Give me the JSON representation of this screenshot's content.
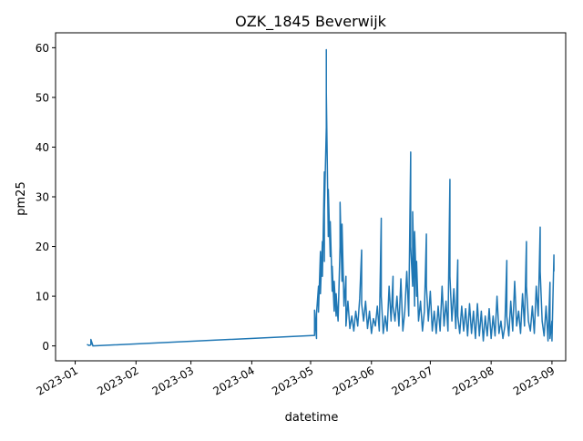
{
  "chart_data": {
    "type": "line",
    "title": "OZK_1845 Beverwijk",
    "xlabel": "datetime",
    "ylabel": "pm25",
    "x_ticks": [
      "2023-01",
      "2023-02",
      "2023-03",
      "2023-04",
      "2023-05",
      "2023-06",
      "2023-07",
      "2023-08",
      "2023-09"
    ],
    "y_ticks": [
      0,
      10,
      20,
      30,
      40,
      50,
      60
    ],
    "xlim": [
      "2022-12-22",
      "2023-09-08"
    ],
    "ylim": [
      -3,
      63
    ],
    "grid": false,
    "series": [
      {
        "color": "#1f77b4",
        "points": [
          [
            "2023-01-07",
            0.3
          ],
          [
            "2023-01-08",
            0.1
          ],
          [
            "2023-01-09",
            0.2
          ],
          [
            "2023-01-09",
            1.3
          ],
          [
            "2023-01-10",
            0.1
          ],
          [
            "2023-01-10",
            0.0
          ],
          [
            "2023-05-03",
            2.1
          ],
          [
            "2023-05-03",
            7.2
          ],
          [
            "2023-05-04",
            1.5
          ],
          [
            "2023-05-04",
            6.5
          ],
          [
            "2023-05-05",
            12.0
          ],
          [
            "2023-05-05",
            6.8
          ],
          [
            "2023-05-06",
            19.0
          ],
          [
            "2023-05-06",
            10.5
          ],
          [
            "2023-05-07",
            21.0
          ],
          [
            "2023-05-07",
            14.0
          ],
          [
            "2023-05-08",
            35.0
          ],
          [
            "2023-05-08",
            17.0
          ],
          [
            "2023-05-08",
            27.0
          ],
          [
            "2023-05-09",
            44.0
          ],
          [
            "2023-05-09",
            59.6
          ],
          [
            "2023-05-09",
            51.0
          ],
          [
            "2023-05-10",
            22.0
          ],
          [
            "2023-05-10",
            31.5
          ],
          [
            "2023-05-11",
            18.0
          ],
          [
            "2023-05-11",
            25.0
          ],
          [
            "2023-05-12",
            11.0
          ],
          [
            "2023-05-12",
            16.0
          ],
          [
            "2023-05-13",
            7.0
          ],
          [
            "2023-05-13",
            13.0
          ],
          [
            "2023-05-14",
            6.0
          ],
          [
            "2023-05-14",
            10.5
          ],
          [
            "2023-05-15",
            5.0
          ],
          [
            "2023-05-16",
            20.0
          ],
          [
            "2023-05-16",
            28.9
          ],
          [
            "2023-05-17",
            13.0
          ],
          [
            "2023-05-17",
            24.5
          ],
          [
            "2023-05-18",
            8.0
          ],
          [
            "2023-05-19",
            14.0
          ],
          [
            "2023-05-19",
            4.0
          ],
          [
            "2023-05-20",
            9.0
          ],
          [
            "2023-05-21",
            3.5
          ],
          [
            "2023-05-22",
            6.0
          ],
          [
            "2023-05-23",
            3.0
          ],
          [
            "2023-05-24",
            7.0
          ],
          [
            "2023-05-25",
            4.0
          ],
          [
            "2023-05-26",
            9.5
          ],
          [
            "2023-05-27",
            19.3
          ],
          [
            "2023-05-27",
            8.5
          ],
          [
            "2023-05-28",
            5.0
          ],
          [
            "2023-05-29",
            9.0
          ],
          [
            "2023-05-30",
            3.5
          ],
          [
            "2023-05-31",
            7.0
          ],
          [
            "2023-06-01",
            2.5
          ],
          [
            "2023-06-02",
            5.5
          ],
          [
            "2023-06-03",
            4.0
          ],
          [
            "2023-06-04",
            8.0
          ],
          [
            "2023-06-05",
            3.0
          ],
          [
            "2023-06-06",
            25.7
          ],
          [
            "2023-06-06",
            10.0
          ],
          [
            "2023-06-07",
            2.5
          ],
          [
            "2023-06-08",
            6.0
          ],
          [
            "2023-06-09",
            3.0
          ],
          [
            "2023-06-10",
            12.0
          ],
          [
            "2023-06-11",
            5.0
          ],
          [
            "2023-06-12",
            14.0
          ],
          [
            "2023-06-12",
            8.0
          ],
          [
            "2023-06-13",
            5.0
          ],
          [
            "2023-06-14",
            10.0
          ],
          [
            "2023-06-15",
            4.0
          ],
          [
            "2023-06-16",
            13.5
          ],
          [
            "2023-06-17",
            3.0
          ],
          [
            "2023-06-18",
            7.0
          ],
          [
            "2023-06-19",
            15.0
          ],
          [
            "2023-06-20",
            6.0
          ],
          [
            "2023-06-21",
            39.0
          ],
          [
            "2023-06-21",
            20.0
          ],
          [
            "2023-06-22",
            12.0
          ],
          [
            "2023-06-22",
            27.0
          ],
          [
            "2023-06-23",
            8.0
          ],
          [
            "2023-06-23",
            23.0
          ],
          [
            "2023-06-24",
            10.0
          ],
          [
            "2023-06-24",
            17.0
          ],
          [
            "2023-06-25",
            5.0
          ],
          [
            "2023-06-26",
            9.0
          ],
          [
            "2023-06-27",
            3.0
          ],
          [
            "2023-06-28",
            7.0
          ],
          [
            "2023-06-29",
            22.5
          ],
          [
            "2023-06-29",
            12.0
          ],
          [
            "2023-06-30",
            5.0
          ],
          [
            "2023-07-01",
            11.0
          ],
          [
            "2023-07-02",
            3.0
          ],
          [
            "2023-07-03",
            7.0
          ],
          [
            "2023-07-04",
            2.5
          ],
          [
            "2023-07-05",
            8.0
          ],
          [
            "2023-07-06",
            3.0
          ],
          [
            "2023-07-07",
            12.0
          ],
          [
            "2023-07-08",
            4.0
          ],
          [
            "2023-07-09",
            9.0
          ],
          [
            "2023-07-10",
            3.0
          ],
          [
            "2023-07-11",
            33.5
          ],
          [
            "2023-07-11",
            14.0
          ],
          [
            "2023-07-12",
            5.0
          ],
          [
            "2023-07-13",
            11.5
          ],
          [
            "2023-07-14",
            3.5
          ],
          [
            "2023-07-15",
            17.3
          ],
          [
            "2023-07-15",
            6.0
          ],
          [
            "2023-07-16",
            2.5
          ],
          [
            "2023-07-17",
            8.0
          ],
          [
            "2023-07-18",
            3.0
          ],
          [
            "2023-07-19",
            7.5
          ],
          [
            "2023-07-20",
            2.0
          ],
          [
            "2023-07-21",
            8.5
          ],
          [
            "2023-07-22",
            2.5
          ],
          [
            "2023-07-23",
            7.0
          ],
          [
            "2023-07-24",
            1.5
          ],
          [
            "2023-07-25",
            8.5
          ],
          [
            "2023-07-26",
            2.0
          ],
          [
            "2023-07-27",
            7.0
          ],
          [
            "2023-07-28",
            1.0
          ],
          [
            "2023-07-29",
            6.0
          ],
          [
            "2023-07-30",
            2.0
          ],
          [
            "2023-07-31",
            7.5
          ],
          [
            "2023-08-01",
            1.5
          ],
          [
            "2023-08-02",
            6.0
          ],
          [
            "2023-08-03",
            2.0
          ],
          [
            "2023-08-04",
            10.0
          ],
          [
            "2023-08-05",
            2.5
          ],
          [
            "2023-08-06",
            5.0
          ],
          [
            "2023-08-07",
            1.5
          ],
          [
            "2023-08-08",
            4.0
          ],
          [
            "2023-08-09",
            17.2
          ],
          [
            "2023-08-09",
            6.0
          ],
          [
            "2023-08-10",
            2.0
          ],
          [
            "2023-08-11",
            9.0
          ],
          [
            "2023-08-12",
            3.0
          ],
          [
            "2023-08-13",
            13.0
          ],
          [
            "2023-08-14",
            4.0
          ],
          [
            "2023-08-15",
            7.0
          ],
          [
            "2023-08-16",
            2.5
          ],
          [
            "2023-08-17",
            10.5
          ],
          [
            "2023-08-18",
            4.0
          ],
          [
            "2023-08-19",
            21.0
          ],
          [
            "2023-08-19",
            12.0
          ],
          [
            "2023-08-20",
            5.0
          ],
          [
            "2023-08-21",
            3.0
          ],
          [
            "2023-08-22",
            8.0
          ],
          [
            "2023-08-23",
            2.5
          ],
          [
            "2023-08-24",
            12.0
          ],
          [
            "2023-08-25",
            6.0
          ],
          [
            "2023-08-26",
            23.9
          ],
          [
            "2023-08-26",
            15.0
          ],
          [
            "2023-08-27",
            5.0
          ],
          [
            "2023-08-28",
            2.0
          ],
          [
            "2023-08-29",
            8.0
          ],
          [
            "2023-08-30",
            1.0
          ],
          [
            "2023-08-31",
            12.8
          ],
          [
            "2023-08-31",
            1.5
          ],
          [
            "2023-09-01",
            5.0
          ],
          [
            "2023-09-01",
            1.0
          ],
          [
            "2023-09-02",
            18.3
          ],
          [
            "2023-09-02",
            15.0
          ]
        ]
      }
    ]
  }
}
